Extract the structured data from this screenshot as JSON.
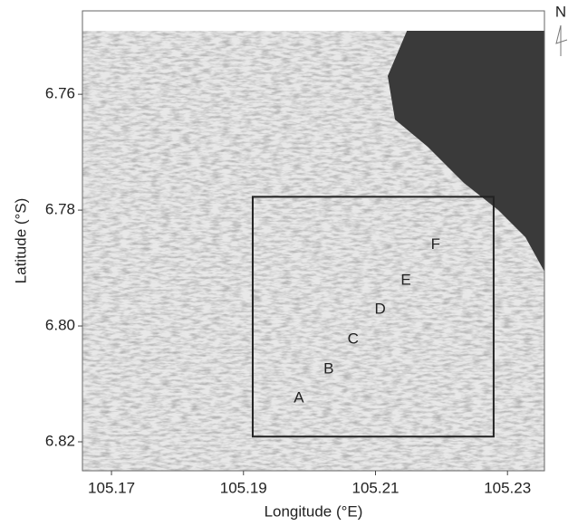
{
  "chart_data": {
    "type": "map",
    "xlabel": "Longitude (°E)",
    "ylabel": "Latitude (°S)",
    "north": "N",
    "xlim": [
      105.1656,
      105.2356
    ],
    "ylim": [
      6.7456,
      6.825
    ],
    "xticks": [
      105.17,
      105.19,
      105.21,
      105.23
    ],
    "yticks": [
      6.76,
      6.78,
      {
        "value": 6.8,
        "label": "6.80"
      },
      6.82
    ],
    "box": {
      "xlim": [
        105.1914,
        105.2279
      ],
      "ylim": [
        6.7777,
        6.8191
      ]
    },
    "points": [
      {
        "label": "A",
        "x": 105.1984,
        "y": 6.8125
      },
      {
        "label": "B",
        "x": 105.2029,
        "y": 6.8075
      },
      {
        "label": "C",
        "x": 105.2066,
        "y": 6.8023
      },
      {
        "label": "D",
        "x": 105.2107,
        "y": 6.7972
      },
      {
        "label": "E",
        "x": 105.2146,
        "y": 6.7922
      },
      {
        "label": "F",
        "x": 105.2191,
        "y": 6.786
      }
    ]
  }
}
